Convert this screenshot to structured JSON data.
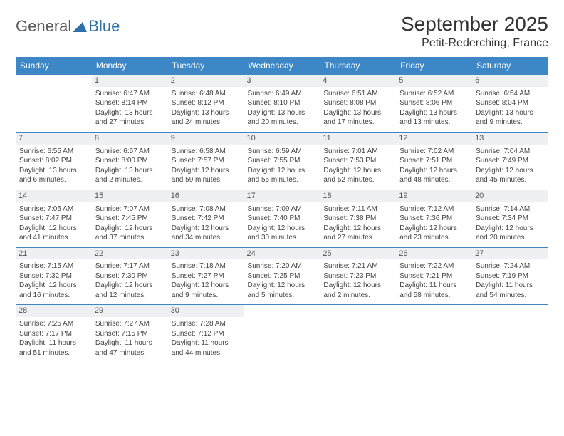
{
  "logo": {
    "general": "General",
    "blue": "Blue"
  },
  "title": "September 2025",
  "location": "Petit-Rederching, France",
  "colors": {
    "header_bg": "#3d87c7",
    "header_text": "#ffffff",
    "daynum_bg": "#eef0f1",
    "border": "#3d87c7",
    "body_text": "#444444",
    "title_text": "#333333",
    "logo_gray": "#5a5a5a",
    "logo_blue": "#2f6fa8"
  },
  "typography": {
    "title_fontsize": 28,
    "location_fontsize": 16,
    "header_fontsize": 12,
    "cell_fontsize": 10,
    "logo_fontsize": 22
  },
  "day_headers": [
    "Sunday",
    "Monday",
    "Tuesday",
    "Wednesday",
    "Thursday",
    "Friday",
    "Saturday"
  ],
  "weeks": [
    [
      null,
      {
        "n": "1",
        "sunrise": "Sunrise: 6:47 AM",
        "sunset": "Sunset: 8:14 PM",
        "daylight": "Daylight: 13 hours and 27 minutes."
      },
      {
        "n": "2",
        "sunrise": "Sunrise: 6:48 AM",
        "sunset": "Sunset: 8:12 PM",
        "daylight": "Daylight: 13 hours and 24 minutes."
      },
      {
        "n": "3",
        "sunrise": "Sunrise: 6:49 AM",
        "sunset": "Sunset: 8:10 PM",
        "daylight": "Daylight: 13 hours and 20 minutes."
      },
      {
        "n": "4",
        "sunrise": "Sunrise: 6:51 AM",
        "sunset": "Sunset: 8:08 PM",
        "daylight": "Daylight: 13 hours and 17 minutes."
      },
      {
        "n": "5",
        "sunrise": "Sunrise: 6:52 AM",
        "sunset": "Sunset: 8:06 PM",
        "daylight": "Daylight: 13 hours and 13 minutes."
      },
      {
        "n": "6",
        "sunrise": "Sunrise: 6:54 AM",
        "sunset": "Sunset: 8:04 PM",
        "daylight": "Daylight: 13 hours and 9 minutes."
      }
    ],
    [
      {
        "n": "7",
        "sunrise": "Sunrise: 6:55 AM",
        "sunset": "Sunset: 8:02 PM",
        "daylight": "Daylight: 13 hours and 6 minutes."
      },
      {
        "n": "8",
        "sunrise": "Sunrise: 6:57 AM",
        "sunset": "Sunset: 8:00 PM",
        "daylight": "Daylight: 13 hours and 2 minutes."
      },
      {
        "n": "9",
        "sunrise": "Sunrise: 6:58 AM",
        "sunset": "Sunset: 7:57 PM",
        "daylight": "Daylight: 12 hours and 59 minutes."
      },
      {
        "n": "10",
        "sunrise": "Sunrise: 6:59 AM",
        "sunset": "Sunset: 7:55 PM",
        "daylight": "Daylight: 12 hours and 55 minutes."
      },
      {
        "n": "11",
        "sunrise": "Sunrise: 7:01 AM",
        "sunset": "Sunset: 7:53 PM",
        "daylight": "Daylight: 12 hours and 52 minutes."
      },
      {
        "n": "12",
        "sunrise": "Sunrise: 7:02 AM",
        "sunset": "Sunset: 7:51 PM",
        "daylight": "Daylight: 12 hours and 48 minutes."
      },
      {
        "n": "13",
        "sunrise": "Sunrise: 7:04 AM",
        "sunset": "Sunset: 7:49 PM",
        "daylight": "Daylight: 12 hours and 45 minutes."
      }
    ],
    [
      {
        "n": "14",
        "sunrise": "Sunrise: 7:05 AM",
        "sunset": "Sunset: 7:47 PM",
        "daylight": "Daylight: 12 hours and 41 minutes."
      },
      {
        "n": "15",
        "sunrise": "Sunrise: 7:07 AM",
        "sunset": "Sunset: 7:45 PM",
        "daylight": "Daylight: 12 hours and 37 minutes."
      },
      {
        "n": "16",
        "sunrise": "Sunrise: 7:08 AM",
        "sunset": "Sunset: 7:42 PM",
        "daylight": "Daylight: 12 hours and 34 minutes."
      },
      {
        "n": "17",
        "sunrise": "Sunrise: 7:09 AM",
        "sunset": "Sunset: 7:40 PM",
        "daylight": "Daylight: 12 hours and 30 minutes."
      },
      {
        "n": "18",
        "sunrise": "Sunrise: 7:11 AM",
        "sunset": "Sunset: 7:38 PM",
        "daylight": "Daylight: 12 hours and 27 minutes."
      },
      {
        "n": "19",
        "sunrise": "Sunrise: 7:12 AM",
        "sunset": "Sunset: 7:36 PM",
        "daylight": "Daylight: 12 hours and 23 minutes."
      },
      {
        "n": "20",
        "sunrise": "Sunrise: 7:14 AM",
        "sunset": "Sunset: 7:34 PM",
        "daylight": "Daylight: 12 hours and 20 minutes."
      }
    ],
    [
      {
        "n": "21",
        "sunrise": "Sunrise: 7:15 AM",
        "sunset": "Sunset: 7:32 PM",
        "daylight": "Daylight: 12 hours and 16 minutes."
      },
      {
        "n": "22",
        "sunrise": "Sunrise: 7:17 AM",
        "sunset": "Sunset: 7:30 PM",
        "daylight": "Daylight: 12 hours and 12 minutes."
      },
      {
        "n": "23",
        "sunrise": "Sunrise: 7:18 AM",
        "sunset": "Sunset: 7:27 PM",
        "daylight": "Daylight: 12 hours and 9 minutes."
      },
      {
        "n": "24",
        "sunrise": "Sunrise: 7:20 AM",
        "sunset": "Sunset: 7:25 PM",
        "daylight": "Daylight: 12 hours and 5 minutes."
      },
      {
        "n": "25",
        "sunrise": "Sunrise: 7:21 AM",
        "sunset": "Sunset: 7:23 PM",
        "daylight": "Daylight: 12 hours and 2 minutes."
      },
      {
        "n": "26",
        "sunrise": "Sunrise: 7:22 AM",
        "sunset": "Sunset: 7:21 PM",
        "daylight": "Daylight: 11 hours and 58 minutes."
      },
      {
        "n": "27",
        "sunrise": "Sunrise: 7:24 AM",
        "sunset": "Sunset: 7:19 PM",
        "daylight": "Daylight: 11 hours and 54 minutes."
      }
    ],
    [
      {
        "n": "28",
        "sunrise": "Sunrise: 7:25 AM",
        "sunset": "Sunset: 7:17 PM",
        "daylight": "Daylight: 11 hours and 51 minutes."
      },
      {
        "n": "29",
        "sunrise": "Sunrise: 7:27 AM",
        "sunset": "Sunset: 7:15 PM",
        "daylight": "Daylight: 11 hours and 47 minutes."
      },
      {
        "n": "30",
        "sunrise": "Sunrise: 7:28 AM",
        "sunset": "Sunset: 7:12 PM",
        "daylight": "Daylight: 11 hours and 44 minutes."
      },
      null,
      null,
      null,
      null
    ]
  ]
}
